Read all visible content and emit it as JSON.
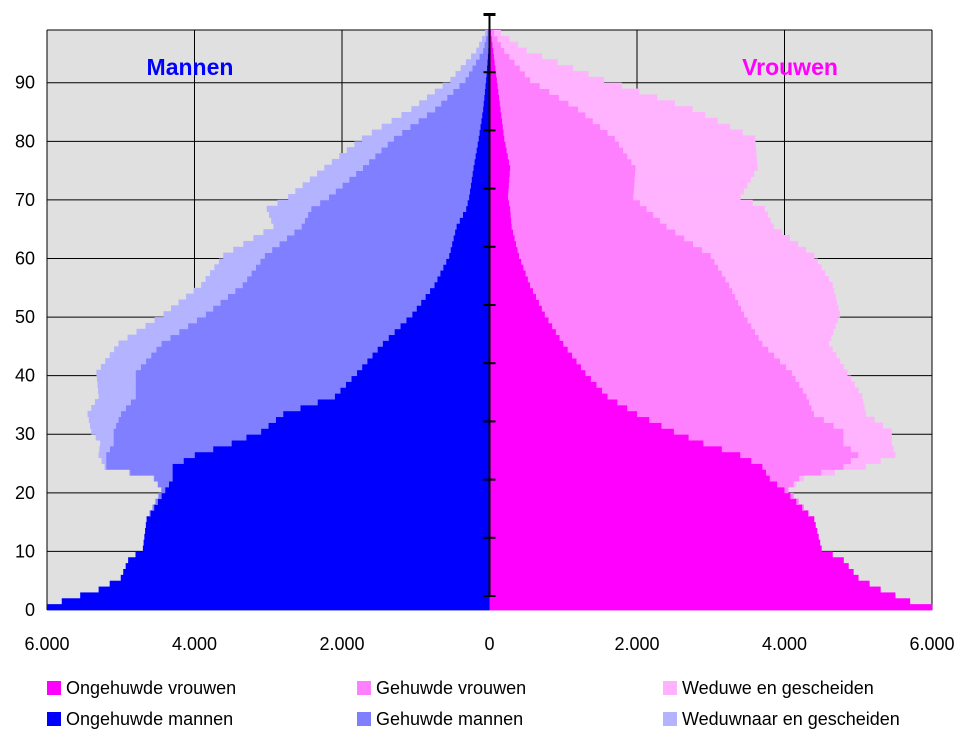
{
  "chart_data": {
    "type": "bar",
    "orientation": "horizontal-population-pyramid",
    "y_axis": {
      "min": 0,
      "max": 99,
      "ticks": [
        0,
        10,
        20,
        30,
        40,
        50,
        60,
        70,
        80,
        90
      ],
      "tick_labels": [
        "0",
        "10",
        "20",
        "30",
        "40",
        "50",
        "60",
        "70",
        "80",
        "90"
      ]
    },
    "x_axis": {
      "min": -6000,
      "max": 6000,
      "ticks": [
        -6000,
        -4000,
        -2000,
        0,
        2000,
        4000,
        6000
      ],
      "tick_labels": [
        "6.000",
        "4.000",
        "2.000",
        "0",
        "2.000",
        "4.000",
        "6.000"
      ]
    },
    "grid": true,
    "stacked": true,
    "side_labels": {
      "left": "Mannen",
      "right": "Vrouwen"
    },
    "ages_keypoints": [
      0,
      1,
      3,
      5,
      8,
      10,
      15,
      20,
      22,
      24,
      26,
      28,
      30,
      33,
      36,
      40,
      45,
      50,
      55,
      60,
      65,
      68,
      70,
      75,
      80,
      85,
      90,
      95,
      99
    ],
    "series": [
      {
        "name": "Ongehuwde mannen",
        "side": "left",
        "color": "#0000ff",
        "values": [
          6000,
          5800,
          5300,
          5000,
          4900,
          4700,
          4650,
          4400,
          4300,
          4300,
          4000,
          3500,
          3100,
          2800,
          2100,
          1800,
          1450,
          1050,
          750,
          550,
          450,
          320,
          280,
          220,
          150,
          90,
          50,
          20,
          5
        ]
      },
      {
        "name": "Gehuwde mannen",
        "side": "left",
        "color": "#7f7fff",
        "values": [
          0,
          0,
          0,
          0,
          0,
          0,
          0,
          50,
          250,
          900,
          1200,
          1600,
          2000,
          2200,
          2700,
          3000,
          3000,
          2800,
          2600,
          2500,
          2100,
          2100,
          1900,
          1500,
          1150,
          650,
          280,
          70,
          5
        ]
      },
      {
        "name": "Weduwnaar en gescheiden",
        "side": "left",
        "color": "#b3b3ff",
        "values": [
          0,
          0,
          0,
          0,
          0,
          0,
          0,
          0,
          5,
          20,
          100,
          180,
          300,
          450,
          500,
          530,
          580,
          570,
          560,
          560,
          380,
          600,
          550,
          520,
          430,
          320,
          200,
          90,
          10
        ]
      },
      {
        "name": "Ongehuwde vrouwen",
        "side": "right",
        "color": "#ff00ff",
        "values": [
          6000,
          5700,
          5300,
          5000,
          4800,
          4500,
          4400,
          4000,
          3800,
          3700,
          3400,
          2900,
          2500,
          2000,
          1600,
          1300,
          1000,
          750,
          550,
          400,
          300,
          280,
          250,
          280,
          200,
          150,
          100,
          50,
          10
        ]
      },
      {
        "name": "Gehuwde vrouwen",
        "side": "right",
        "color": "#ff80ff",
        "values": [
          0,
          0,
          0,
          0,
          0,
          0,
          0,
          50,
          400,
          1100,
          1600,
          1900,
          2300,
          2400,
          2700,
          2800,
          2700,
          2700,
          2700,
          2600,
          2100,
          1850,
          1700,
          1700,
          1500,
          1050,
          450,
          150,
          5
        ]
      },
      {
        "name": "Weduwe en gescheiden",
        "side": "right",
        "color": "#ffb3ff",
        "values": [
          0,
          0,
          0,
          0,
          0,
          0,
          0,
          0,
          60,
          300,
          500,
          650,
          650,
          700,
          750,
          750,
          900,
          1300,
          1400,
          1400,
          1450,
          1600,
          1450,
          1650,
          1900,
          1550,
          1000,
          300,
          20
        ]
      }
    ],
    "legend": {
      "placement": "bottom",
      "items": [
        {
          "label": "Ongehuwde vrouwen",
          "color": "#ff00ff"
        },
        {
          "label": "Gehuwde vrouwen",
          "color": "#ff80ff"
        },
        {
          "label": "Weduwe en gescheiden",
          "color": "#ffb3ff"
        },
        {
          "label": "Ongehuwde mannen",
          "color": "#0000ff"
        },
        {
          "label": "Gehuwde mannen",
          "color": "#7f7fff"
        },
        {
          "label": "Weduwnaar en gescheiden",
          "color": "#b3b3ff"
        }
      ]
    },
    "colors": {
      "plot_background": "#e0e0e0",
      "grid": "#000000",
      "mannen_label": "#0000ff",
      "vrouwen_label": "#ff00ff"
    }
  }
}
